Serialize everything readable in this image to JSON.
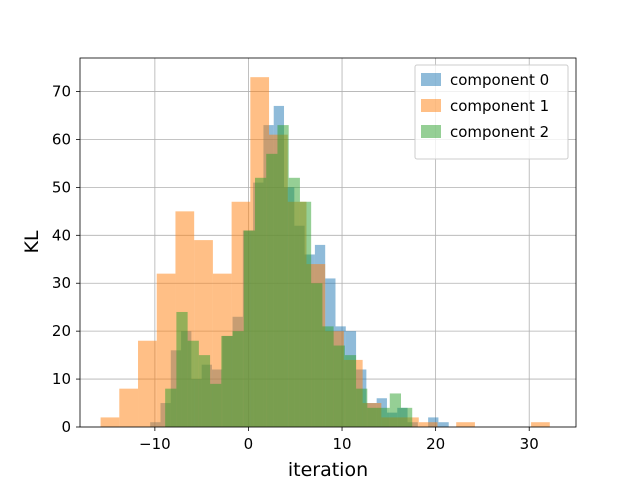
{
  "chart_data": {
    "type": "bar",
    "title": "",
    "xlabel": "iteration",
    "ylabel": "KL",
    "xlim": [
      -18,
      35
    ],
    "ylim": [
      0,
      77
    ],
    "grid": true,
    "legend_position": "top-right",
    "x_ticks": [
      -10,
      0,
      10,
      20,
      30
    ],
    "y_ticks": [
      0,
      10,
      20,
      30,
      40,
      50,
      60,
      70
    ],
    "series": [
      {
        "name": "component 0",
        "color": "#1f77b4",
        "bins": [
          [
            -10.5,
            -9.4,
            1
          ],
          [
            -9.4,
            -8.3,
            5
          ],
          [
            -8.3,
            -7.2,
            16
          ],
          [
            -7.2,
            -6.1,
            20
          ],
          [
            -6.1,
            -5.0,
            10
          ],
          [
            -5.0,
            -3.9,
            13
          ],
          [
            -3.9,
            -2.8,
            12
          ],
          [
            -2.8,
            -1.7,
            19
          ],
          [
            -1.7,
            -0.6,
            23
          ],
          [
            -0.6,
            0.5,
            41
          ],
          [
            0.5,
            1.6,
            51
          ],
          [
            1.6,
            2.7,
            63
          ],
          [
            2.7,
            3.8,
            67
          ],
          [
            3.8,
            4.9,
            50
          ],
          [
            4.9,
            6.0,
            42
          ],
          [
            6.0,
            7.1,
            36
          ],
          [
            7.1,
            8.2,
            38
          ],
          [
            8.2,
            9.3,
            31
          ],
          [
            9.3,
            10.4,
            21
          ],
          [
            10.4,
            11.5,
            20
          ],
          [
            11.5,
            12.6,
            12
          ],
          [
            12.6,
            13.7,
            5
          ],
          [
            13.7,
            14.8,
            6
          ],
          [
            14.8,
            15.9,
            3
          ],
          [
            15.9,
            17.0,
            4
          ],
          [
            17.0,
            18.1,
            1
          ],
          [
            18.1,
            19.2,
            0
          ],
          [
            19.2,
            20.3,
            2
          ],
          [
            20.3,
            21.4,
            1
          ]
        ]
      },
      {
        "name": "component 1",
        "color": "#ff7f0e",
        "bins": [
          [
            -15.8,
            -13.8,
            2
          ],
          [
            -13.8,
            -11.8,
            8
          ],
          [
            -11.8,
            -9.8,
            18
          ],
          [
            -9.8,
            -7.8,
            32
          ],
          [
            -7.8,
            -5.8,
            45
          ],
          [
            -5.8,
            -3.8,
            39
          ],
          [
            -3.8,
            -1.8,
            32
          ],
          [
            -1.8,
            0.2,
            47
          ],
          [
            0.2,
            2.2,
            73
          ],
          [
            2.2,
            4.2,
            61
          ],
          [
            4.2,
            6.2,
            47
          ],
          [
            6.2,
            8.2,
            34
          ],
          [
            8.2,
            10.2,
            20
          ],
          [
            10.2,
            12.2,
            14
          ],
          [
            12.2,
            14.2,
            5
          ],
          [
            14.2,
            16.2,
            2
          ],
          [
            16.2,
            18.2,
            2
          ],
          [
            18.2,
            20.2,
            1
          ],
          [
            20.2,
            22.2,
            0
          ],
          [
            22.2,
            24.2,
            1
          ],
          [
            24.2,
            26.2,
            0
          ],
          [
            26.2,
            28.2,
            0
          ],
          [
            28.2,
            30.2,
            0
          ],
          [
            30.2,
            32.2,
            1
          ]
        ]
      },
      {
        "name": "component 2",
        "color": "#2ca02c",
        "bins": [
          [
            -8.9,
            -7.7,
            8
          ],
          [
            -7.7,
            -6.5,
            24
          ],
          [
            -6.5,
            -5.3,
            18
          ],
          [
            -5.3,
            -4.1,
            15
          ],
          [
            -4.1,
            -2.9,
            9
          ],
          [
            -2.9,
            -1.7,
            19
          ],
          [
            -1.7,
            -0.5,
            20
          ],
          [
            -0.5,
            0.7,
            41
          ],
          [
            0.7,
            1.9,
            52
          ],
          [
            1.9,
            3.1,
            57
          ],
          [
            3.1,
            4.3,
            63
          ],
          [
            4.3,
            5.5,
            52
          ],
          [
            5.5,
            6.7,
            47
          ],
          [
            6.7,
            7.9,
            30
          ],
          [
            7.9,
            9.1,
            21
          ],
          [
            9.1,
            10.3,
            17
          ],
          [
            10.3,
            11.5,
            15
          ],
          [
            11.5,
            12.7,
            8
          ],
          [
            12.7,
            13.9,
            4
          ],
          [
            13.9,
            15.1,
            4
          ],
          [
            15.1,
            16.3,
            7
          ],
          [
            16.3,
            17.5,
            4
          ]
        ]
      }
    ]
  }
}
